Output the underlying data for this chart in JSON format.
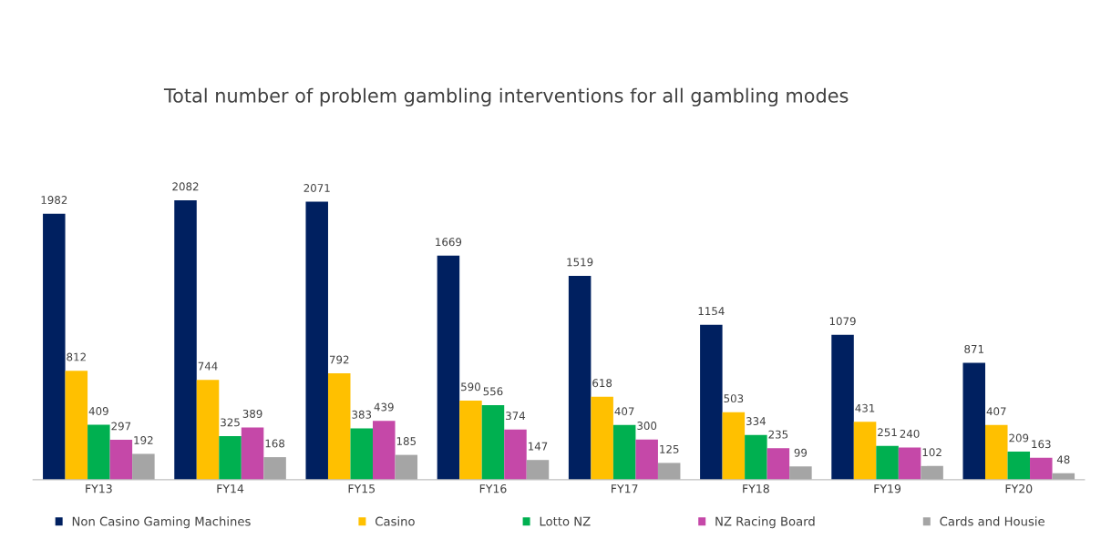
{
  "chart_data": {
    "type": "bar",
    "title": "Total number of problem gambling interventions for all gambling modes",
    "categories": [
      "FY13",
      "FY14",
      "FY15",
      "FY16",
      "FY17",
      "FY18",
      "FY19",
      "FY20"
    ],
    "series": [
      {
        "name": "Non Casino Gaming Machines",
        "color": "#002060",
        "values": [
          1982,
          2082,
          2071,
          1669,
          1519,
          1154,
          1079,
          871
        ]
      },
      {
        "name": "Casino",
        "color": "#ffc000",
        "values": [
          812,
          744,
          792,
          590,
          618,
          503,
          431,
          407
        ]
      },
      {
        "name": "Lotto NZ",
        "color": "#00b050",
        "values": [
          409,
          325,
          383,
          556,
          407,
          334,
          251,
          209
        ]
      },
      {
        "name": "NZ Racing Board",
        "color": "#c548a8",
        "values": [
          297,
          389,
          439,
          374,
          300,
          235,
          240,
          163
        ]
      },
      {
        "name": "Cards and Housie",
        "color": "#a5a5a5",
        "values": [
          192,
          168,
          185,
          147,
          125,
          99,
          102,
          48
        ]
      }
    ],
    "data_labels": true,
    "legend": "bottom",
    "grid": false,
    "tick_labels": "x"
  }
}
